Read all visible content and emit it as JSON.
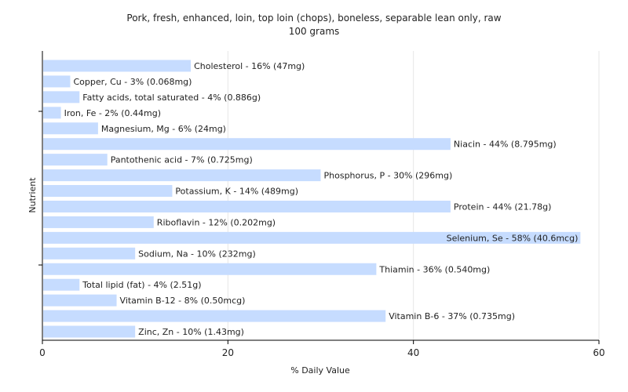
{
  "chart_data": {
    "type": "bar",
    "orientation": "horizontal",
    "title": "Pork, fresh, enhanced, loin, top loin (chops), boneless, separable lean only, raw",
    "subtitle": "100 grams",
    "xlabel": "% Daily Value",
    "ylabel": "Nutrient",
    "xlim": [
      0,
      60
    ],
    "xticks": [
      0,
      20,
      40,
      60
    ],
    "grid": true,
    "bar_color": "#c6dcff",
    "bars": [
      {
        "name": "Cholesterol",
        "value": 16,
        "label": "Cholesterol - 16% (47mg)"
      },
      {
        "name": "Copper, Cu",
        "value": 3,
        "label": "Copper, Cu - 3% (0.068mg)"
      },
      {
        "name": "Fatty acids, total saturated",
        "value": 4,
        "label": "Fatty acids, total saturated - 4% (0.886g)"
      },
      {
        "name": "Iron, Fe",
        "value": 2,
        "label": "Iron, Fe - 2% (0.44mg)"
      },
      {
        "name": "Magnesium, Mg",
        "value": 6,
        "label": "Magnesium, Mg - 6% (24mg)"
      },
      {
        "name": "Niacin",
        "value": 44,
        "label": "Niacin - 44% (8.795mg)"
      },
      {
        "name": "Pantothenic acid",
        "value": 7,
        "label": "Pantothenic acid - 7% (0.725mg)"
      },
      {
        "name": "Phosphorus, P",
        "value": 30,
        "label": "Phosphorus, P - 30% (296mg)"
      },
      {
        "name": "Potassium, K",
        "value": 14,
        "label": "Potassium, K - 14% (489mg)"
      },
      {
        "name": "Protein",
        "value": 44,
        "label": "Protein - 44% (21.78g)"
      },
      {
        "name": "Riboflavin",
        "value": 12,
        "label": "Riboflavin - 12% (0.202mg)"
      },
      {
        "name": "Selenium, Se",
        "value": 58,
        "label": "Selenium, Se - 58% (40.6mcg)"
      },
      {
        "name": "Sodium, Na",
        "value": 10,
        "label": "Sodium, Na - 10% (232mg)"
      },
      {
        "name": "Thiamin",
        "value": 36,
        "label": "Thiamin - 36% (0.540mg)"
      },
      {
        "name": "Total lipid (fat)",
        "value": 4,
        "label": "Total lipid (fat) - 4% (2.51g)"
      },
      {
        "name": "Vitamin B-12",
        "value": 8,
        "label": "Vitamin B-12 - 8% (0.50mcg)"
      },
      {
        "name": "Vitamin B-6",
        "value": 37,
        "label": "Vitamin B-6 - 37% (0.735mg)"
      },
      {
        "name": "Zinc, Zn",
        "value": 10,
        "label": "Zinc, Zn - 10% (1.43mg)"
      }
    ]
  }
}
